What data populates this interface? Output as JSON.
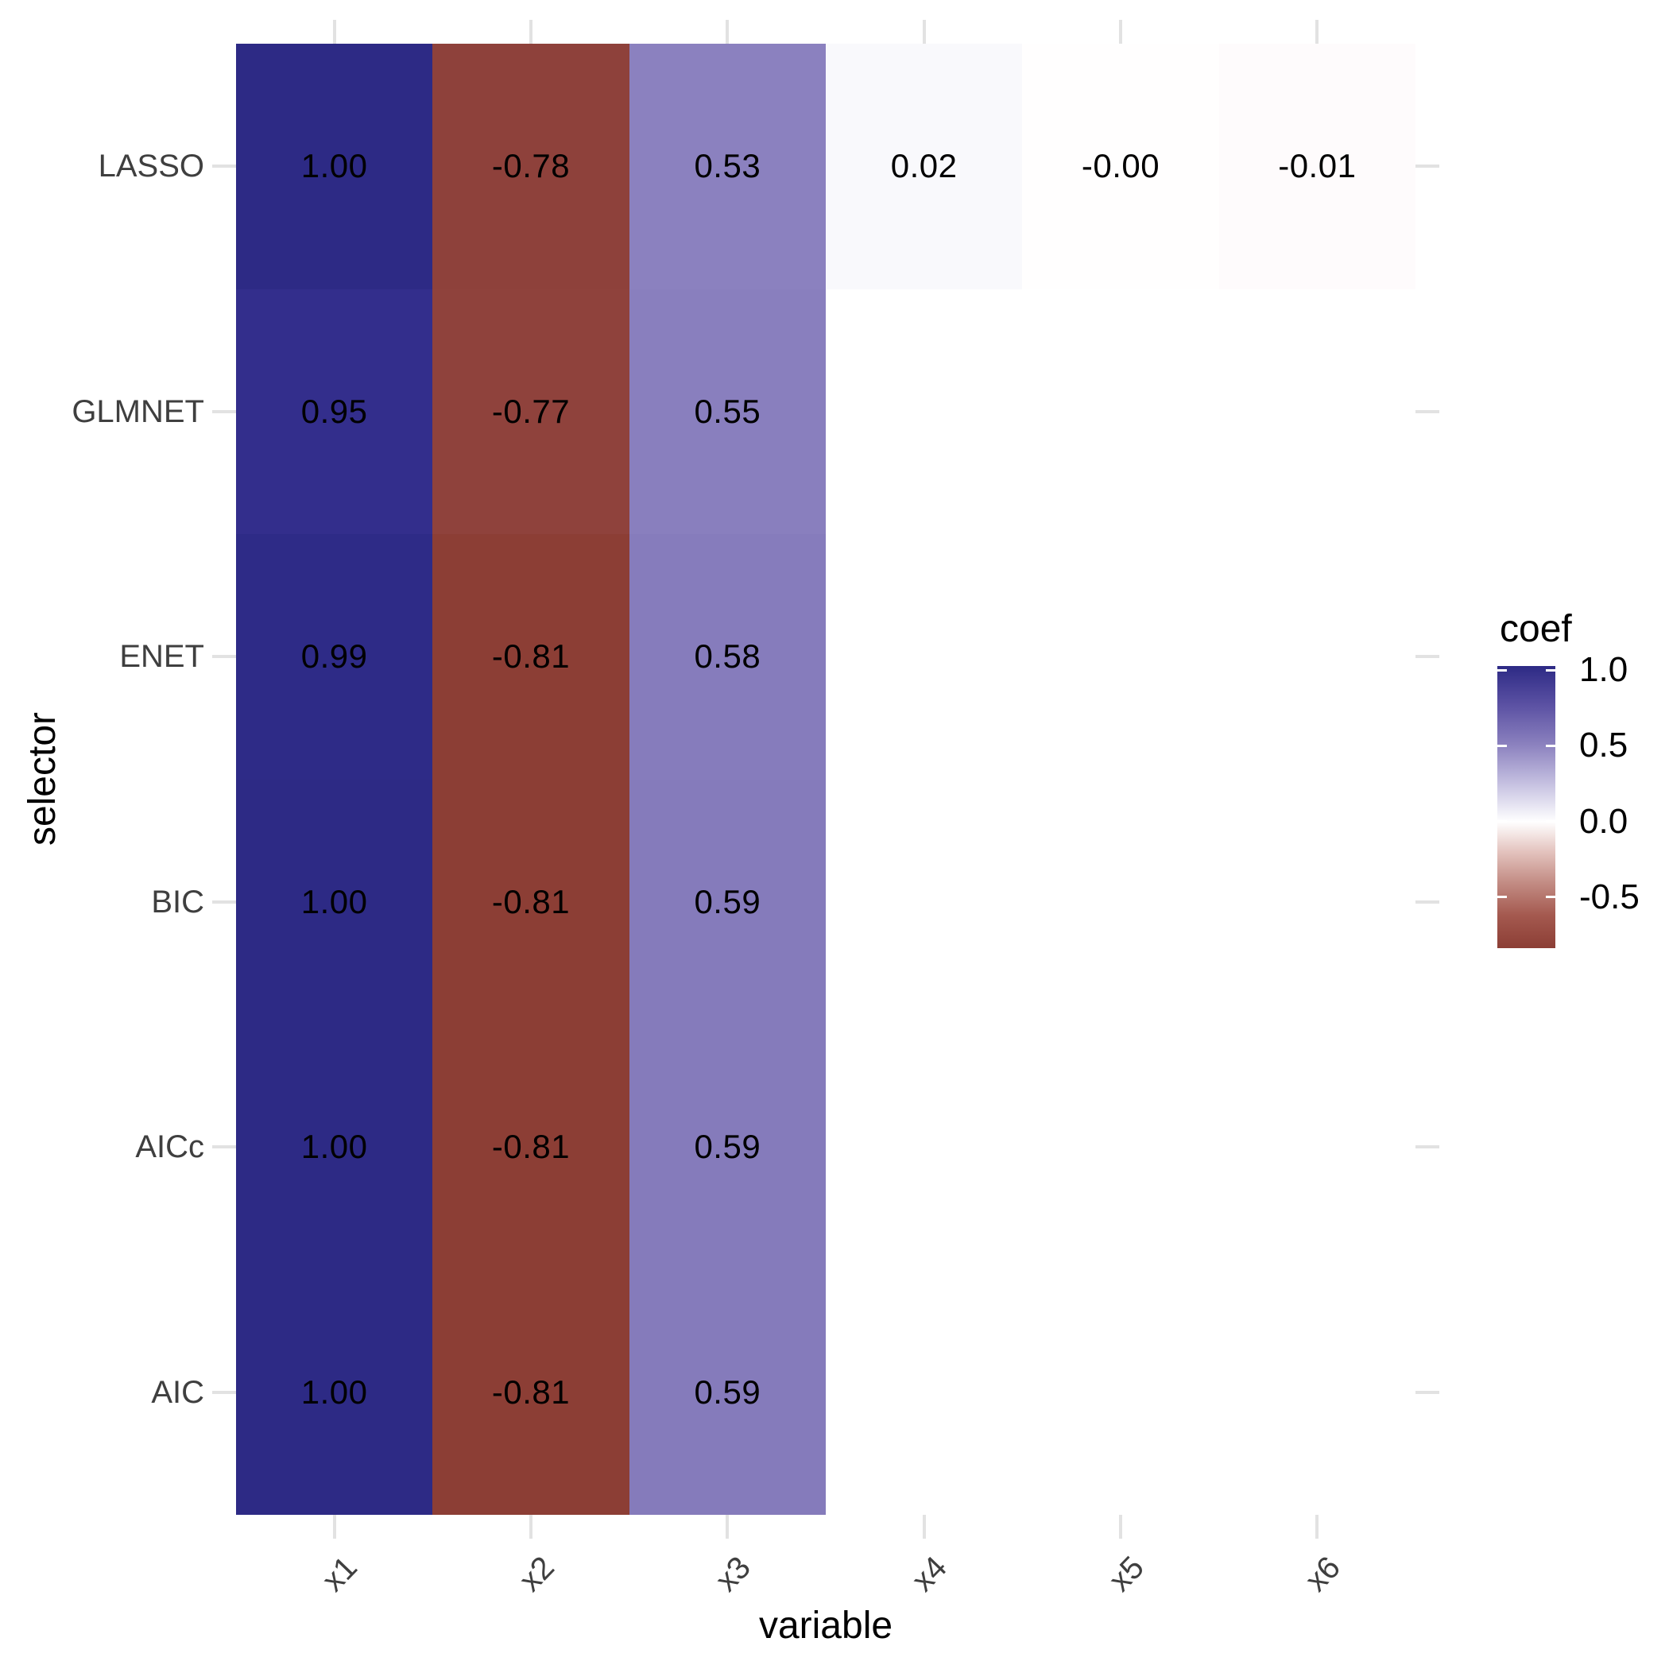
{
  "figure": {
    "background": "#ffffff",
    "tick_color": "#e2e2e2",
    "axis_text_color": "#3f3f3f",
    "axis_title_color": "#000000"
  },
  "chart_data": {
    "type": "heatmap",
    "title": "",
    "xlabel": "variable",
    "ylabel": "selector",
    "grid": false,
    "x_categories": [
      "x1",
      "x2",
      "x3",
      "x4",
      "x5",
      "x6"
    ],
    "y_categories_top_to_bottom": [
      "LASSO",
      "GLMNET",
      "ENET",
      "BIC",
      "AICc",
      "AIC"
    ],
    "cells": [
      {
        "selector": "LASSO",
        "variable": "x1",
        "value": 1.0,
        "label": "1.00",
        "color": "#2d2a85"
      },
      {
        "selector": "LASSO",
        "variable": "x2",
        "value": -0.78,
        "label": "-0.78",
        "color": "#8e413b"
      },
      {
        "selector": "LASSO",
        "variable": "x3",
        "value": 0.53,
        "label": "0.53",
        "color": "#8b81bf"
      },
      {
        "selector": "LASSO",
        "variable": "x4",
        "value": 0.02,
        "label": "0.02",
        "color": "#f9f9fc"
      },
      {
        "selector": "LASSO",
        "variable": "x5",
        "value": -0.0,
        "label": "-0.00",
        "color": "#fffefe"
      },
      {
        "selector": "LASSO",
        "variable": "x6",
        "value": -0.01,
        "label": "-0.01",
        "color": "#fefbfc"
      },
      {
        "selector": "GLMNET",
        "variable": "x1",
        "value": 0.95,
        "label": "0.95",
        "color": "#332e8c"
      },
      {
        "selector": "GLMNET",
        "variable": "x2",
        "value": -0.77,
        "label": "-0.77",
        "color": "#8f423c"
      },
      {
        "selector": "GLMNET",
        "variable": "x3",
        "value": 0.55,
        "label": "0.55",
        "color": "#897fbe"
      },
      {
        "selector": "ENET",
        "variable": "x1",
        "value": 0.99,
        "label": "0.99",
        "color": "#2e2b87"
      },
      {
        "selector": "ENET",
        "variable": "x2",
        "value": -0.81,
        "label": "-0.81",
        "color": "#8c3e35"
      },
      {
        "selector": "ENET",
        "variable": "x3",
        "value": 0.58,
        "label": "0.58",
        "color": "#867cbc"
      },
      {
        "selector": "BIC",
        "variable": "x1",
        "value": 1.0,
        "label": "1.00",
        "color": "#2d2a85"
      },
      {
        "selector": "BIC",
        "variable": "x2",
        "value": -0.81,
        "label": "-0.81",
        "color": "#8c3e35"
      },
      {
        "selector": "BIC",
        "variable": "x3",
        "value": 0.59,
        "label": "0.59",
        "color": "#857bbb"
      },
      {
        "selector": "AICc",
        "variable": "x1",
        "value": 1.0,
        "label": "1.00",
        "color": "#2d2a85"
      },
      {
        "selector": "AICc",
        "variable": "x2",
        "value": -0.81,
        "label": "-0.81",
        "color": "#8c3e35"
      },
      {
        "selector": "AICc",
        "variable": "x3",
        "value": 0.59,
        "label": "0.59",
        "color": "#857bbb"
      },
      {
        "selector": "AIC",
        "variable": "x1",
        "value": 1.0,
        "label": "1.00",
        "color": "#2d2a85"
      },
      {
        "selector": "AIC",
        "variable": "x2",
        "value": -0.81,
        "label": "-0.81",
        "color": "#8c3e35"
      },
      {
        "selector": "AIC",
        "variable": "x3",
        "value": 0.59,
        "label": "0.59",
        "color": "#857bbb"
      }
    ],
    "legend": {
      "title": "coef",
      "position": "right",
      "tick_labels": [
        "1.0",
        "0.5",
        "0.0",
        "-0.5"
      ],
      "tick_values": [
        1.0,
        0.5,
        0.0,
        -0.5
      ],
      "range_min": -0.81,
      "range_max": 1.0,
      "high_color": "#2d2a85",
      "mid_color": "#ffffff",
      "low_color": "#8c3e35",
      "gradient_stops": [
        {
          "pos": 0.0,
          "color": "#2d2a85"
        },
        {
          "pos": 0.138,
          "color": "#5b51a3"
        },
        {
          "pos": 0.276,
          "color": "#8a80be"
        },
        {
          "pos": 0.414,
          "color": "#c4bfe0"
        },
        {
          "pos": 0.552,
          "color": "#ffffff"
        },
        {
          "pos": 0.66,
          "color": "#e3c2bd"
        },
        {
          "pos": 0.77,
          "color": "#c28b83"
        },
        {
          "pos": 0.884,
          "color": "#a4594f"
        },
        {
          "pos": 1.0,
          "color": "#8c3e35"
        }
      ]
    }
  }
}
